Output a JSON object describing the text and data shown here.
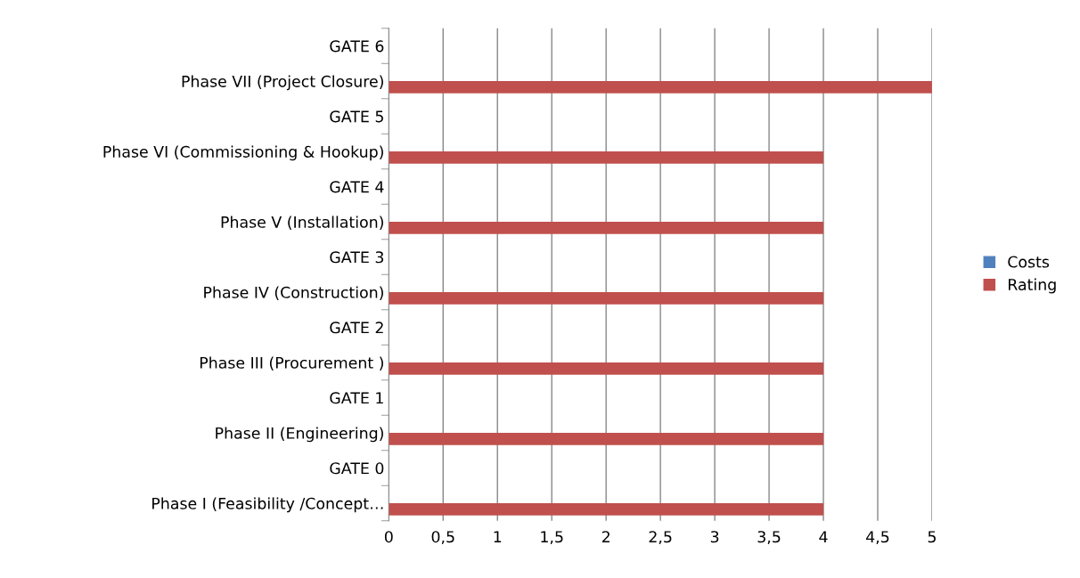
{
  "chart_data": {
    "type": "bar",
    "orientation": "horizontal",
    "categories": [
      "GATE 6",
      "Phase VII (Project Closure)",
      "GATE 5",
      "Phase VI (Commissioning & Hookup)",
      "GATE 4",
      "Phase V (Installation)",
      "GATE 3",
      "Phase IV (Construction)",
      "GATE 2",
      "Phase III (Procurement )",
      "GATE 1",
      "Phase II (Engineering)",
      "GATE 0",
      "Phase I (Feasibility /Concept…"
    ],
    "series": [
      {
        "name": "Costs",
        "color": "#4f81bd",
        "values": [
          null,
          null,
          null,
          null,
          null,
          null,
          null,
          null,
          null,
          null,
          null,
          null,
          null,
          null
        ]
      },
      {
        "name": "Rating",
        "color": "#c0504d",
        "values": [
          null,
          5,
          null,
          4,
          null,
          4,
          null,
          4,
          null,
          4,
          null,
          4,
          null,
          4
        ]
      }
    ],
    "xlim": [
      0,
      5
    ],
    "xticks": [
      0,
      {
        "value": 0.5,
        "label": "0,5"
      },
      1,
      {
        "value": 1.5,
        "label": "1,5"
      },
      2,
      {
        "value": 2.5,
        "label": "2,5"
      },
      3,
      {
        "value": 3.5,
        "label": "3,5"
      },
      4,
      {
        "value": 4.5,
        "label": "4,5"
      },
      5
    ],
    "grid": "x",
    "legend": "right"
  }
}
